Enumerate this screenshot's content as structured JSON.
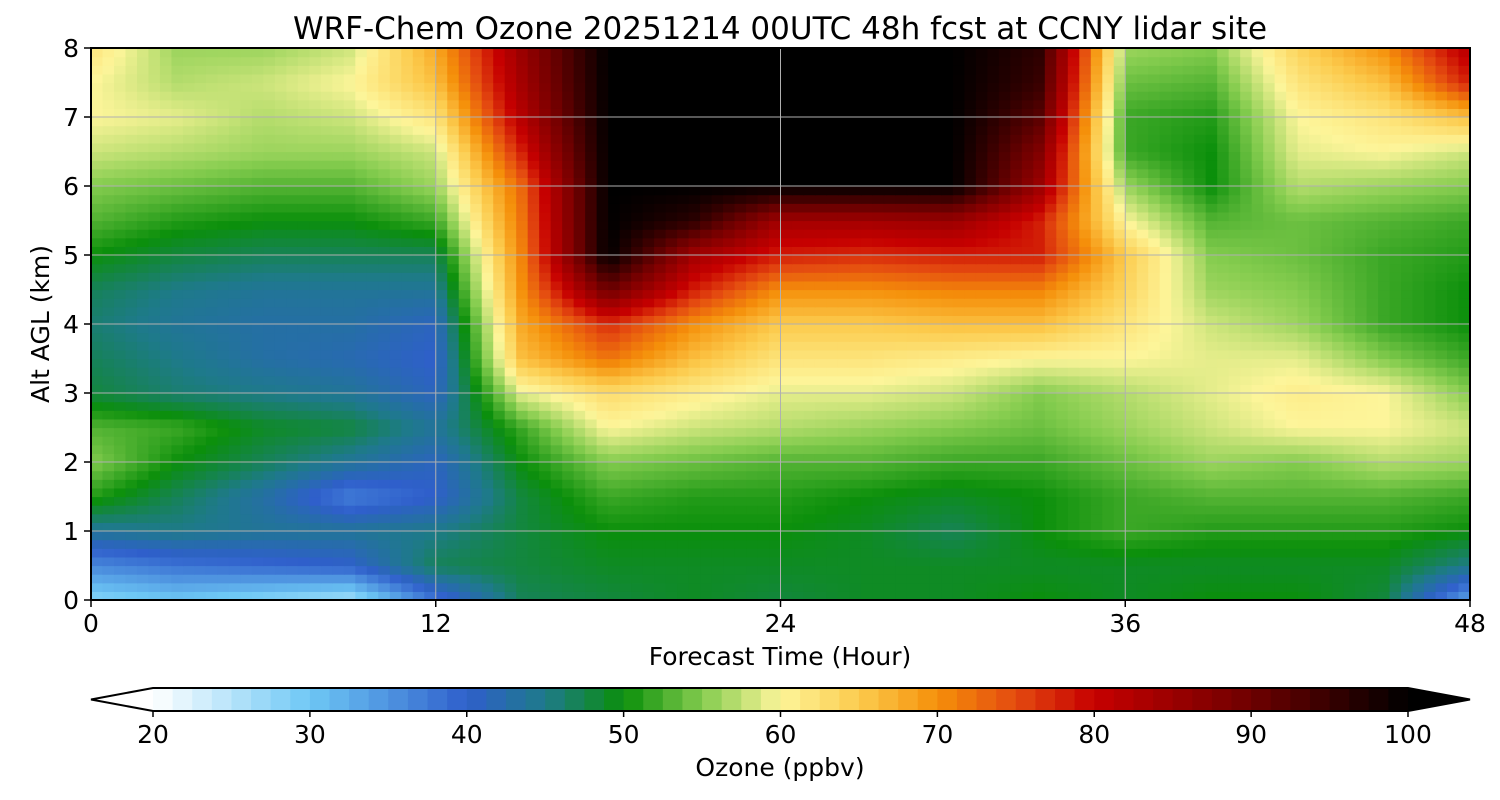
{
  "chart_data": {
    "type": "heatmap",
    "title": "WRF-Chem Ozone  20251214 00UTC 48h fcst at CCNY lidar site",
    "xlabel": "Forecast Time (Hour)",
    "ylabel": "Alt AGL (km)",
    "xlim": [
      0,
      48
    ],
    "ylim": [
      0,
      8
    ],
    "x_ticks": [
      "0",
      "12",
      "24",
      "36",
      "48"
    ],
    "y_ticks": [
      "0",
      "1",
      "2",
      "3",
      "4",
      "5",
      "6",
      "7",
      "8"
    ],
    "grid": true,
    "x": [
      0,
      3,
      6,
      9,
      12,
      15,
      18,
      21,
      24,
      27,
      30,
      33,
      36,
      39,
      42,
      45,
      48
    ],
    "y": [
      0,
      0.5,
      1,
      1.5,
      2,
      2.5,
      3,
      3.5,
      4,
      4.5,
      5,
      5.5,
      6,
      6.5,
      7,
      7.5,
      8
    ],
    "z": [
      [
        28,
        30,
        28,
        26,
        38,
        47,
        48,
        49,
        48,
        49,
        49,
        50,
        49,
        50,
        50,
        48,
        33
      ],
      [
        36,
        38,
        39,
        40,
        47,
        48,
        49,
        49,
        49,
        49,
        49,
        49,
        49,
        49,
        49,
        49,
        45
      ],
      [
        44,
        45,
        44,
        44,
        45,
        48,
        50,
        50,
        50,
        49,
        47,
        50,
        52,
        51,
        51,
        51,
        50
      ],
      [
        51,
        47,
        43,
        37,
        40,
        48,
        52,
        51,
        51,
        50,
        49,
        50,
        52,
        53,
        53,
        53,
        52
      ],
      [
        55,
        50,
        47,
        44,
        41,
        50,
        55,
        54,
        53,
        53,
        52,
        52,
        54,
        56,
        55,
        57,
        56
      ],
      [
        53,
        52,
        49,
        48,
        44,
        52,
        60,
        58,
        57,
        56,
        55,
        54,
        56,
        58,
        60,
        60,
        58
      ],
      [
        48,
        46,
        45,
        44,
        41,
        59,
        63,
        61,
        59,
        59,
        58,
        55,
        57,
        59,
        61,
        60,
        55
      ],
      [
        47,
        45,
        43,
        42,
        40,
        66,
        72,
        66,
        62,
        62,
        61,
        60,
        60,
        59,
        59,
        55,
        52
      ],
      [
        46,
        44,
        43,
        43,
        41,
        68,
        77,
        70,
        65,
        65,
        66,
        66,
        62,
        58,
        56,
        52,
        50
      ],
      [
        47,
        45,
        44,
        44,
        44,
        70,
        90,
        78,
        70,
        70,
        71,
        71,
        64,
        56,
        55,
        52,
        50
      ],
      [
        50,
        48,
        47,
        47,
        47,
        71,
        100,
        84,
        78,
        77,
        78,
        78,
        65,
        55,
        54,
        52,
        51
      ],
      [
        53,
        51,
        50,
        50,
        52,
        72,
        100,
        96,
        84,
        84,
        85,
        78,
        60,
        53,
        54,
        53,
        52
      ],
      [
        55,
        54,
        53,
        53,
        56,
        73,
        100,
        100,
        100,
        100,
        100,
        85,
        56,
        50,
        57,
        56,
        55
      ],
      [
        58,
        57,
        56,
        56,
        58,
        78,
        100,
        100,
        100,
        100,
        100,
        88,
        52,
        50,
        59,
        60,
        58
      ],
      [
        60,
        59,
        57,
        58,
        62,
        82,
        100,
        100,
        100,
        100,
        100,
        92,
        52,
        51,
        60,
        62,
        66
      ],
      [
        60,
        57,
        58,
        60,
        66,
        84,
        100,
        100,
        100,
        100,
        100,
        95,
        54,
        53,
        62,
        66,
        78
      ],
      [
        62,
        56,
        56,
        58,
        68,
        85,
        100,
        100,
        100,
        100,
        100,
        96,
        56,
        55,
        64,
        70,
        82
      ]
    ],
    "colorbar": {
      "label": "Ozone  (ppbv)",
      "min": 20,
      "max": 100,
      "ticks": [
        "20",
        "30",
        "40",
        "50",
        "60",
        "70",
        "80",
        "90",
        "100"
      ],
      "extend": "both",
      "stops": [
        {
          "v": 20,
          "c": "#ffffff"
        },
        {
          "v": 30,
          "c": "#6ec8f5"
        },
        {
          "v": 40,
          "c": "#2f5fcb"
        },
        {
          "v": 45,
          "c": "#1e7a8a"
        },
        {
          "v": 50,
          "c": "#0b8f0b"
        },
        {
          "v": 55,
          "c": "#84cc4e"
        },
        {
          "v": 60,
          "c": "#fdf59a"
        },
        {
          "v": 65,
          "c": "#fccb4d"
        },
        {
          "v": 70,
          "c": "#f5900a"
        },
        {
          "v": 75,
          "c": "#e44a10"
        },
        {
          "v": 80,
          "c": "#c60000"
        },
        {
          "v": 90,
          "c": "#6e0000"
        },
        {
          "v": 100,
          "c": "#000000"
        }
      ]
    }
  }
}
